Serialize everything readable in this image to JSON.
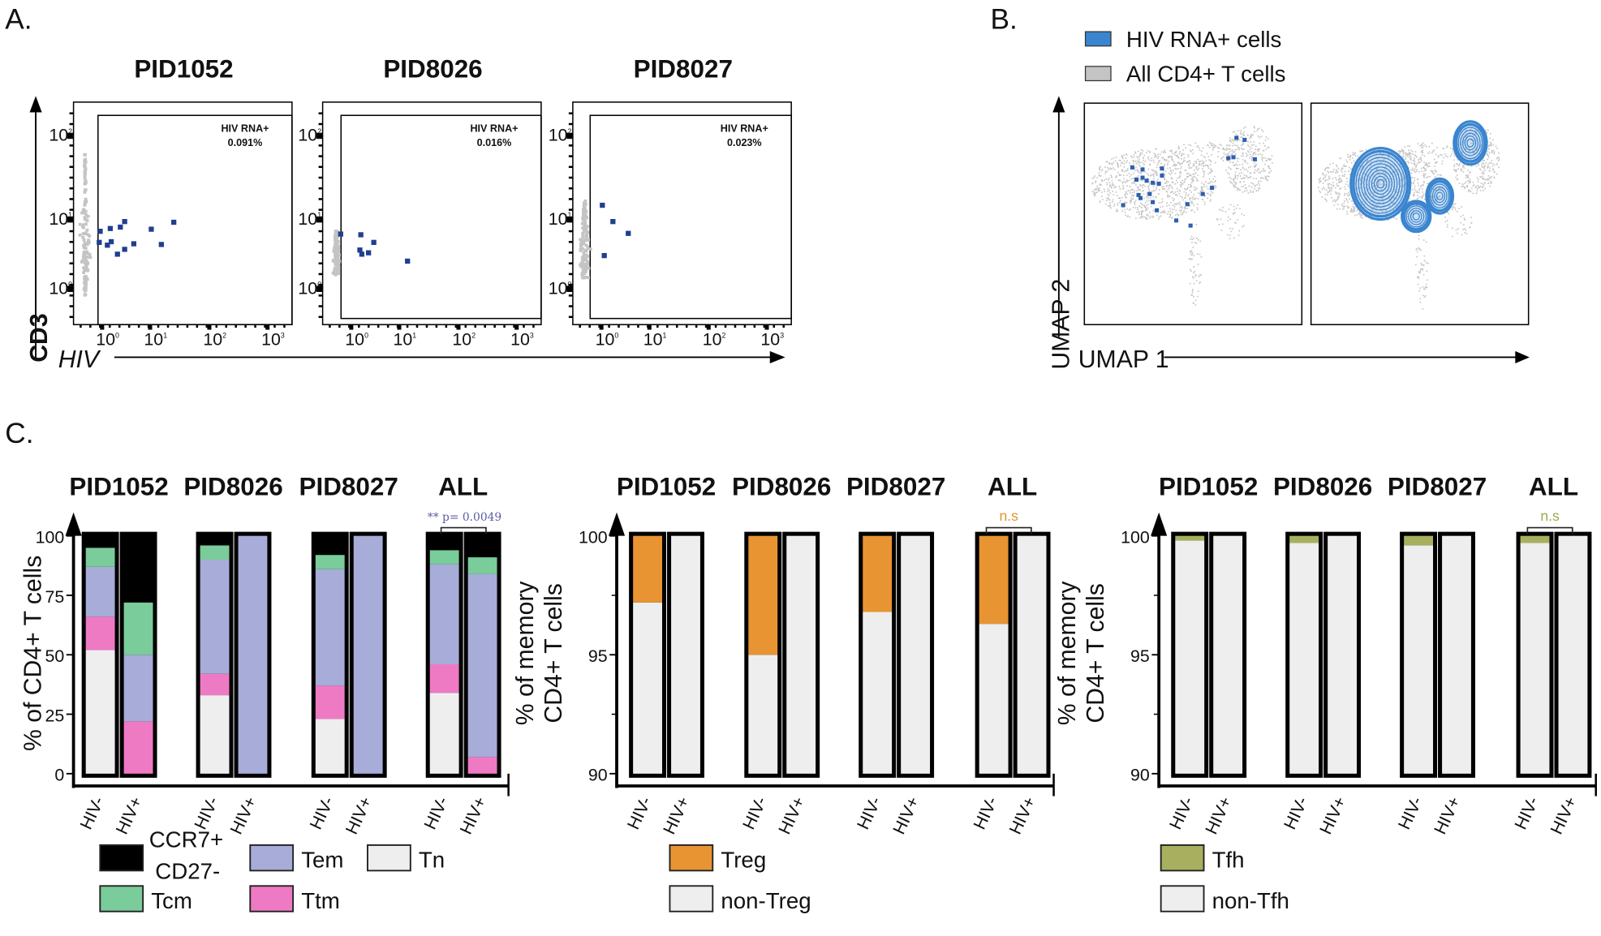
{
  "panel_labels": {
    "a": "A.",
    "b": "B.",
    "c": "C."
  },
  "colors": {
    "hiv_point": "#1f3f8f",
    "all_cells": "#c4c4c4",
    "umap_hiv": "#3a85d0",
    "CCR7+ CD27-": "#000000",
    "Tcm": "#7acc9a",
    "Tem": "#a7acd8",
    "Ttm": "#ee7ac4",
    "Tn": "#eeeeee",
    "Treg": "#e89433",
    "non-Treg": "#eeeeee",
    "Tfh": "#a8b060",
    "non-Tfh": "#eeeeee",
    "pvalue": "#5b5ba6",
    "ns_treg": "#e0952e",
    "ns_tfh": "#a0a84c"
  },
  "panel_a": {
    "x_axis_label": "HIV",
    "y_axis_label": "CD3",
    "tick_base": "10",
    "x_tick_exponents": [
      "0",
      "1",
      "2",
      "3"
    ],
    "y_tick_exponents": [
      "0",
      "1",
      "2"
    ]
  },
  "panel_b": {
    "legend": [
      {
        "label": "HIV RNA+ cells",
        "color": "#3a85d0"
      },
      {
        "label": "All CD4+ T cells",
        "color": "#c4c4c4"
      }
    ],
    "x_axis_label": "UMAP 1",
    "y_axis_label": "UMAP 2"
  },
  "chart_data": [
    {
      "type": "scatter",
      "panel": "A",
      "title": "PID1052",
      "scale": "log10",
      "gate_label": "HIV RNA+",
      "gate_percent": "0.091%",
      "points_log10_hiv_cd3": [
        [
          -0.04,
          0.83
        ],
        [
          0.17,
          0.87
        ],
        [
          0.38,
          0.89
        ],
        [
          0.47,
          0.97
        ],
        [
          -0.06,
          0.67
        ],
        [
          0.11,
          0.63
        ],
        [
          0.19,
          0.68
        ],
        [
          0.32,
          0.5
        ],
        [
          0.47,
          0.57
        ],
        [
          0.66,
          0.65
        ],
        [
          1.02,
          0.86
        ],
        [
          1.19,
          0.64
        ],
        [
          1.4,
          0.96
        ]
      ]
    },
    {
      "type": "scatter",
      "panel": "A",
      "title": "PID8026",
      "scale": "log10",
      "gate_label": "HIV RNA+",
      "gate_percent": "0.016%",
      "points_log10_hiv_cd3": [
        [
          -0.22,
          0.79
        ],
        [
          0.2,
          0.78
        ],
        [
          0.18,
          0.56
        ],
        [
          0.22,
          0.5
        ],
        [
          0.36,
          0.52
        ],
        [
          0.47,
          0.67
        ],
        [
          1.14,
          0.4
        ]
      ]
    },
    {
      "type": "scatter",
      "panel": "A",
      "title": "PID8027",
      "scale": "log10",
      "gate_label": "HIV RNA+",
      "gate_percent": "0.023%",
      "points_log10_hiv_cd3": [
        [
          0.02,
          1.17
        ],
        [
          0.24,
          0.97
        ],
        [
          0.56,
          0.8
        ],
        [
          0.06,
          0.48
        ]
      ]
    },
    {
      "type": "bar",
      "stacked": true,
      "panel": "C",
      "groups": [
        "PID1052",
        "PID8026",
        "PID8027",
        "ALL"
      ],
      "categories": [
        "HIV-",
        "HIV+"
      ],
      "ylabel": [
        "% of CD4+ T cells"
      ],
      "ylim": [
        0,
        100
      ],
      "y_ticks": [
        "0",
        "25",
        "50",
        "75",
        "100"
      ],
      "series_order_bottom_to_top": [
        "Tn",
        "Ttm",
        "Tem",
        "Tcm",
        "CCR7+ CD27-"
      ],
      "bars": [
        {
          "group": "PID1052",
          "category": "HIV-",
          "values": {
            "Tn": 52,
            "Ttm": 14,
            "Tem": 21,
            "Tcm": 8,
            "CCR7+ CD27-": 5
          }
        },
        {
          "group": "PID1052",
          "category": "HIV+",
          "values": {
            "Tn": 0,
            "Ttm": 22,
            "Tem": 28,
            "Tcm": 22,
            "CCR7+ CD27-": 28
          }
        },
        {
          "group": "PID8026",
          "category": "HIV-",
          "values": {
            "Tn": 33,
            "Ttm": 9,
            "Tem": 48,
            "Tcm": 6,
            "CCR7+ CD27-": 4
          }
        },
        {
          "group": "PID8026",
          "category": "HIV+",
          "values": {
            "Tn": 0,
            "Ttm": 0,
            "Tem": 100,
            "Tcm": 0,
            "CCR7+ CD27-": 0
          }
        },
        {
          "group": "PID8027",
          "category": "HIV-",
          "values": {
            "Tn": 23,
            "Ttm": 14,
            "Tem": 49,
            "Tcm": 6,
            "CCR7+ CD27-": 8
          }
        },
        {
          "group": "PID8027",
          "category": "HIV+",
          "values": {
            "Tn": 0,
            "Ttm": 0,
            "Tem": 100,
            "Tcm": 0,
            "CCR7+ CD27-": 0
          }
        },
        {
          "group": "ALL",
          "category": "HIV-",
          "values": {
            "Tn": 34,
            "Ttm": 12,
            "Tem": 42,
            "Tcm": 6,
            "CCR7+ CD27-": 6
          }
        },
        {
          "group": "ALL",
          "category": "HIV+",
          "values": {
            "Tn": 0,
            "Ttm": 7,
            "Tem": 77,
            "Tcm": 7,
            "CCR7+ CD27-": 9
          }
        }
      ],
      "annotation": "** p= 0.0049",
      "legend": [
        {
          "label": "CCR7+",
          "label2": "CD27-",
          "series": "CCR7+ CD27-"
        },
        {
          "label": "Tem",
          "series": "Tem"
        },
        {
          "label": "Tn",
          "series": "Tn"
        },
        {
          "label": "Tcm",
          "series": "Tcm"
        },
        {
          "label": "Ttm",
          "series": "Ttm"
        }
      ]
    },
    {
      "type": "bar",
      "stacked": true,
      "panel": "C",
      "groups": [
        "PID1052",
        "PID8026",
        "PID8027",
        "ALL"
      ],
      "categories": [
        "HIV-",
        "HIV+"
      ],
      "ylabel": [
        "% of memory",
        "CD4+ T cells"
      ],
      "ylim": [
        90,
        100
      ],
      "y_ticks": [
        "90",
        "95",
        "100"
      ],
      "series_order_bottom_to_top": [
        "non-Treg",
        "Treg"
      ],
      "bars": [
        {
          "group": "PID1052",
          "category": "HIV-",
          "values": {
            "non-Treg": 97.2,
            "Treg": 2.8
          }
        },
        {
          "group": "PID1052",
          "category": "HIV+",
          "values": {
            "non-Treg": 100,
            "Treg": 0
          }
        },
        {
          "group": "PID8026",
          "category": "HIV-",
          "values": {
            "non-Treg": 95.0,
            "Treg": 5.0
          }
        },
        {
          "group": "PID8026",
          "category": "HIV+",
          "values": {
            "non-Treg": 100,
            "Treg": 0
          }
        },
        {
          "group": "PID8027",
          "category": "HIV-",
          "values": {
            "non-Treg": 96.8,
            "Treg": 3.2
          }
        },
        {
          "group": "PID8027",
          "category": "HIV+",
          "values": {
            "non-Treg": 100,
            "Treg": 0
          }
        },
        {
          "group": "ALL",
          "category": "HIV-",
          "values": {
            "non-Treg": 96.3,
            "Treg": 3.7
          }
        },
        {
          "group": "ALL",
          "category": "HIV+",
          "values": {
            "non-Treg": 100,
            "Treg": 0
          }
        }
      ],
      "annotation": "n.s",
      "legend": [
        {
          "label": "Treg",
          "series": "Treg"
        },
        {
          "label": "non-Treg",
          "series": "non-Treg"
        }
      ]
    },
    {
      "type": "bar",
      "stacked": true,
      "panel": "C",
      "groups": [
        "PID1052",
        "PID8026",
        "PID8027",
        "ALL"
      ],
      "categories": [
        "HIV-",
        "HIV+"
      ],
      "ylabel": [
        "% of memory",
        "CD4+ T cells"
      ],
      "ylim": [
        90,
        100
      ],
      "y_ticks": [
        "90",
        "95",
        "100"
      ],
      "series_order_bottom_to_top": [
        "non-Tfh",
        "Tfh"
      ],
      "bars": [
        {
          "group": "PID1052",
          "category": "HIV-",
          "values": {
            "non-Tfh": 99.8,
            "Tfh": 0.2
          }
        },
        {
          "group": "PID1052",
          "category": "HIV+",
          "values": {
            "non-Tfh": 100,
            "Tfh": 0
          }
        },
        {
          "group": "PID8026",
          "category": "HIV-",
          "values": {
            "non-Tfh": 99.7,
            "Tfh": 0.3
          }
        },
        {
          "group": "PID8026",
          "category": "HIV+",
          "values": {
            "non-Tfh": 100,
            "Tfh": 0
          }
        },
        {
          "group": "PID8027",
          "category": "HIV-",
          "values": {
            "non-Tfh": 99.6,
            "Tfh": 0.4
          }
        },
        {
          "group": "PID8027",
          "category": "HIV+",
          "values": {
            "non-Tfh": 100,
            "Tfh": 0
          }
        },
        {
          "group": "ALL",
          "category": "HIV-",
          "values": {
            "non-Tfh": 99.7,
            "Tfh": 0.3
          }
        },
        {
          "group": "ALL",
          "category": "HIV+",
          "values": {
            "non-Tfh": 100,
            "Tfh": 0
          }
        }
      ],
      "annotation": "n.s",
      "legend": [
        {
          "label": "Tfh",
          "series": "Tfh"
        },
        {
          "label": "non-Tfh",
          "series": "non-Tfh"
        }
      ]
    }
  ]
}
